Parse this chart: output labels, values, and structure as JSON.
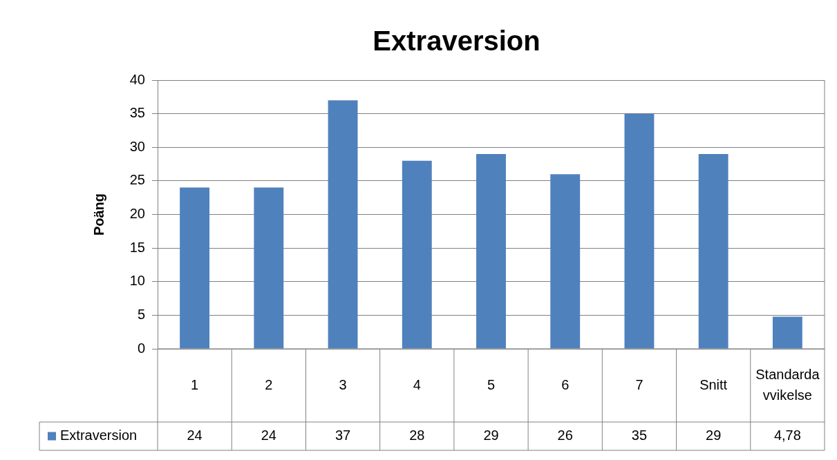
{
  "chart_data": {
    "type": "bar",
    "title": "Extraversion",
    "ylabel": "Poäng",
    "categories": [
      "1",
      "2",
      "3",
      "4",
      "5",
      "6",
      "7",
      "Snitt",
      "Standardavvikelse"
    ],
    "series": [
      {
        "name": "Extraversion",
        "color": "#4f81bd",
        "values": [
          24,
          24,
          37,
          28,
          29,
          26,
          35,
          29,
          4.78
        ],
        "value_labels": [
          "24",
          "24",
          "37",
          "28",
          "29",
          "26",
          "35",
          "29",
          "4,78"
        ]
      }
    ],
    "ylim": [
      0,
      40
    ],
    "yticks": [
      0,
      5,
      10,
      15,
      20,
      25,
      30,
      35,
      40
    ],
    "grid": "y",
    "legend": "bottom",
    "data_labels": true
  }
}
